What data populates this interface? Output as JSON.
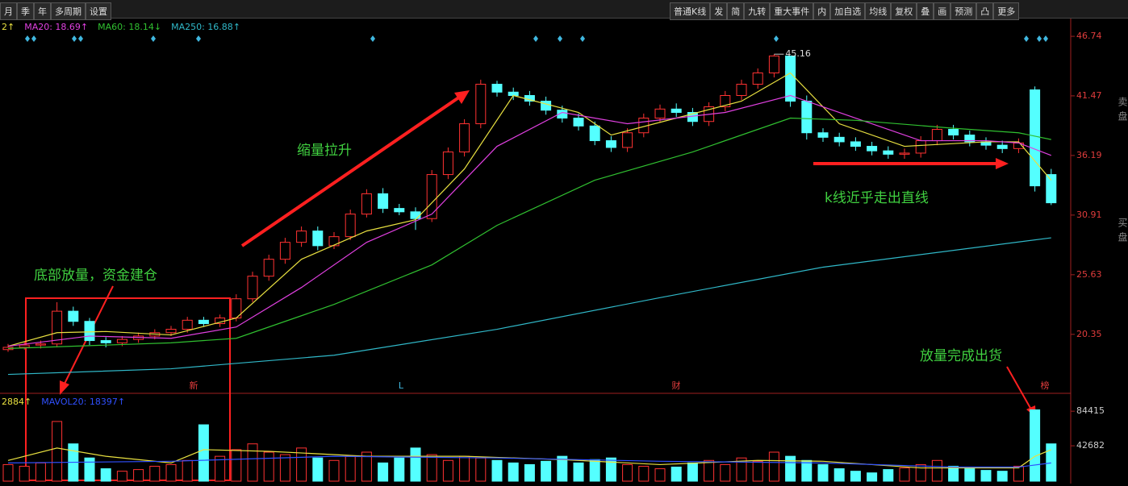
{
  "toolbar": {
    "left": [
      "月",
      "季",
      "年",
      "多周期",
      "设置"
    ],
    "right": [
      "普通K线",
      "发",
      "简",
      "九转",
      "重大事件",
      "内",
      "加自选",
      "均线",
      "复权",
      "叠",
      "画",
      "预测",
      "凸",
      "更多"
    ]
  },
  "side": [
    "卖盘",
    "买盘"
  ],
  "chart_data": [
    {
      "type": "candlestick",
      "up_color": "#ff3232",
      "down_color": "#54ffff",
      "open": [
        19.0,
        19.2,
        19.4,
        19.5,
        22.4,
        21.5,
        19.8,
        19.6,
        19.9,
        20.2,
        20.5,
        20.8,
        21.6,
        21.3,
        21.8,
        23.5,
        25.5,
        27.0,
        28.5,
        29.5,
        28.2,
        29.0,
        31.0,
        32.8,
        31.5,
        31.2,
        30.6,
        34.5,
        36.5,
        39.0,
        42.5,
        41.8,
        41.5,
        41.0,
        40.2,
        39.5,
        38.8,
        37.5,
        36.9,
        38.2,
        39.5,
        40.3,
        40.0,
        39.2,
        40.5,
        41.5,
        42.5,
        43.5,
        45.0,
        41.0,
        38.2,
        37.8,
        37.4,
        37.0,
        36.6,
        36.3,
        36.4,
        37.5,
        38.5,
        38.0,
        37.4,
        37.1,
        36.8,
        42.0,
        34.5
      ],
      "high": [
        19.5,
        19.7,
        19.8,
        23.2,
        22.8,
        21.8,
        20.1,
        20.2,
        20.5,
        20.8,
        21.1,
        21.9,
        21.9,
        22.1,
        23.9,
        25.9,
        27.4,
        28.9,
        29.9,
        29.9,
        29.4,
        31.4,
        33.2,
        33.3,
        31.9,
        31.6,
        34.9,
        36.9,
        39.4,
        42.9,
        42.8,
        42.2,
        41.9,
        41.4,
        40.6,
        39.9,
        39.2,
        37.9,
        38.6,
        39.9,
        40.7,
        40.8,
        40.4,
        40.9,
        41.9,
        42.9,
        43.9,
        45.16,
        45.0,
        41.5,
        38.6,
        38.2,
        37.8,
        37.4,
        37.0,
        36.8,
        37.9,
        38.9,
        38.9,
        38.4,
        37.8,
        37.5,
        37.7,
        42.3,
        35.0
      ],
      "low": [
        18.8,
        19.0,
        19.1,
        19.2,
        21.1,
        19.4,
        19.2,
        19.3,
        19.6,
        19.9,
        20.2,
        20.5,
        21.0,
        21.0,
        21.5,
        23.2,
        25.1,
        26.6,
        28.1,
        27.8,
        27.9,
        28.7,
        30.7,
        31.1,
        30.9,
        29.6,
        30.3,
        34.1,
        36.1,
        38.6,
        41.4,
        41.1,
        40.6,
        39.8,
        39.1,
        38.4,
        37.1,
        36.5,
        36.5,
        37.8,
        39.1,
        39.6,
        38.8,
        38.8,
        40.1,
        41.1,
        42.1,
        43.1,
        40.5,
        37.6,
        37.4,
        37.0,
        36.6,
        36.2,
        35.9,
        35.9,
        36.0,
        37.1,
        37.6,
        37.0,
        36.7,
        36.4,
        36.4,
        33.0,
        31.8
      ],
      "close": [
        19.2,
        19.4,
        19.5,
        22.4,
        21.5,
        19.8,
        19.6,
        19.9,
        20.2,
        20.5,
        20.8,
        21.6,
        21.3,
        21.8,
        23.5,
        25.5,
        27.0,
        28.5,
        29.5,
        28.2,
        29.0,
        31.0,
        32.8,
        31.5,
        31.2,
        30.6,
        34.5,
        36.5,
        39.0,
        42.5,
        41.8,
        41.5,
        41.0,
        40.2,
        39.5,
        38.8,
        37.5,
        36.9,
        38.2,
        39.5,
        40.3,
        40.0,
        39.2,
        40.5,
        41.5,
        42.5,
        43.5,
        45.0,
        41.0,
        38.2,
        37.8,
        37.4,
        37.0,
        36.6,
        36.3,
        36.4,
        37.5,
        38.5,
        38.0,
        37.4,
        37.1,
        36.8,
        37.3,
        33.5,
        32.0
      ],
      "series": [
        {
          "name": "2↑",
          "color": "#e8e040",
          "x": [
            0,
            3,
            6,
            10,
            14,
            18,
            22,
            25,
            28,
            31,
            35,
            37,
            41,
            45,
            48,
            51,
            55,
            60,
            62,
            64
          ],
          "values": [
            19.3,
            20.5,
            20.6,
            20.3,
            21.8,
            27.0,
            29.5,
            30.5,
            35.0,
            41.5,
            40.0,
            38.0,
            39.5,
            41.0,
            43.5,
            39.0,
            37.0,
            37.4,
            37.4,
            34.0
          ]
        },
        {
          "name": "MA20: 18.69↑",
          "color": "#e040e0",
          "x": [
            0,
            5,
            10,
            14,
            18,
            22,
            26,
            30,
            34,
            38,
            44,
            48,
            52,
            56,
            60,
            62,
            64
          ],
          "values": [
            19.3,
            20.2,
            20.0,
            21.0,
            24.5,
            28.5,
            31.0,
            37.0,
            40.0,
            39.0,
            40.0,
            41.5,
            39.5,
            37.5,
            37.5,
            37.3,
            36.2
          ]
        },
        {
          "name": "MA60: 18.14↓",
          "color": "#30c030",
          "x": [
            0,
            10,
            14,
            20,
            26,
            30,
            36,
            42,
            48,
            52,
            58,
            62,
            64
          ],
          "values": [
            19.1,
            19.6,
            20.0,
            23.0,
            26.5,
            30.0,
            34.0,
            36.5,
            39.5,
            39.3,
            38.6,
            38.2,
            37.6
          ]
        },
        {
          "name": "MA250: 16.88↑",
          "color": "#30b8c8",
          "x": [
            0,
            10,
            20,
            30,
            40,
            50,
            64
          ],
          "values": [
            16.8,
            17.3,
            18.5,
            20.8,
            23.6,
            26.3,
            28.9
          ]
        }
      ],
      "ylim": [
        15.2,
        49.6
      ],
      "yticks": [
        20.35,
        25.63,
        30.91,
        36.19,
        41.47,
        46.74
      ],
      "annotations": [
        "缩量拉升",
        "k线近乎走出直线",
        "底部放量，资金建仓",
        "放量完成出货"
      ],
      "markers": [
        "新",
        "L",
        "财",
        "榜"
      ]
    },
    {
      "type": "bar",
      "values": [
        20000,
        18000,
        22000,
        72000,
        45000,
        28000,
        15000,
        12000,
        14000,
        18000,
        20000,
        25000,
        68000,
        30000,
        38000,
        45000,
        35000,
        32000,
        40000,
        28000,
        25000,
        30000,
        35000,
        22000,
        28000,
        40000,
        32000,
        25000,
        30000,
        28000,
        25000,
        22000,
        20000,
        24000,
        30000,
        22000,
        26000,
        28000,
        20000,
        18000,
        15000,
        17000,
        22000,
        25000,
        20000,
        28000,
        24000,
        35000,
        30000,
        25000,
        20000,
        15000,
        12000,
        10000,
        14000,
        16000,
        20000,
        25000,
        18000,
        15000,
        13000,
        12000,
        18000,
        86000,
        45000
      ],
      "series": [
        {
          "name": "2884↑",
          "color": "#e8e040",
          "x": [
            0,
            3,
            6,
            10,
            12,
            16,
            22,
            28,
            34,
            40,
            46,
            50,
            56,
            62,
            63,
            64
          ],
          "values": [
            25000,
            40000,
            30000,
            22000,
            38000,
            36000,
            30000,
            30000,
            26000,
            20000,
            25000,
            24000,
            16000,
            16000,
            30000,
            38000
          ]
        },
        {
          "name": "MAVOL20: 18397↑",
          "color": "#3050ff",
          "x": [
            0,
            10,
            20,
            30,
            40,
            50,
            58,
            62,
            64
          ],
          "values": [
            22000,
            24000,
            30000,
            28000,
            24000,
            22000,
            17000,
            17000,
            22000
          ]
        }
      ],
      "ylim": [
        0,
        105000
      ],
      "yticks": [
        42682,
        84415
      ]
    }
  ]
}
